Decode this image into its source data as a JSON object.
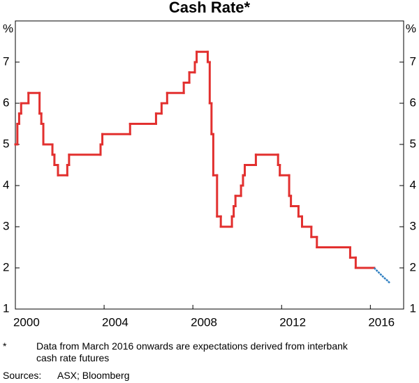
{
  "chart_data": {
    "type": "step-line",
    "title": "Cash Rate*",
    "y_unit": "%",
    "xlim": [
      2000,
      2017.5
    ],
    "xticks": [
      2000,
      2004,
      2008,
      2012,
      2016
    ],
    "ylim": [
      1,
      8
    ],
    "yticks": [
      1,
      2,
      3,
      4,
      5,
      6,
      7
    ],
    "grid": false,
    "series": [
      {
        "name": "Cash rate",
        "color": "#e2302f",
        "step": "post",
        "x": [
          2000.0,
          2000.09,
          2000.17,
          2000.26,
          2000.59,
          2001.09,
          2001.17,
          2001.26,
          2001.67,
          2001.76,
          2001.92,
          2002.34,
          2002.42,
          2003.84,
          2003.92,
          2005.17,
          2006.34,
          2006.59,
          2006.84,
          2007.59,
          2007.84,
          2008.09,
          2008.17,
          2008.67,
          2008.76,
          2008.84,
          2008.92,
          2009.09,
          2009.26,
          2009.76,
          2009.84,
          2009.92,
          2010.17,
          2010.26,
          2010.34,
          2010.84,
          2011.84,
          2011.92,
          2012.34,
          2012.42,
          2012.76,
          2012.92,
          2013.34,
          2013.59,
          2015.09,
          2015.34,
          2016.17
        ],
        "values": [
          5.0,
          5.5,
          5.75,
          6.0,
          6.25,
          5.75,
          5.5,
          5.0,
          4.75,
          4.5,
          4.25,
          4.5,
          4.75,
          5.0,
          5.25,
          5.5,
          5.75,
          6.0,
          6.25,
          6.5,
          6.75,
          7.0,
          7.25,
          7.0,
          6.0,
          5.25,
          4.25,
          3.25,
          3.0,
          3.25,
          3.5,
          3.75,
          4.0,
          4.25,
          4.5,
          4.75,
          4.5,
          4.25,
          3.75,
          3.5,
          3.25,
          3.0,
          2.75,
          2.5,
          2.25,
          2.0,
          2.0
        ]
      },
      {
        "name": "Expectations",
        "color": "#2f7fc1",
        "step": "none",
        "x": [
          2016.17,
          2016.3,
          2016.45,
          2016.6,
          2016.75,
          2016.88
        ],
        "values": [
          2.0,
          1.93,
          1.85,
          1.77,
          1.7,
          1.63
        ]
      }
    ],
    "footnote_marker": "*",
    "footnote": "Data from March 2016 onwards are expectations derived from interbank cash rate futures",
    "sources_label": "Sources:",
    "sources": "ASX; Bloomberg"
  }
}
